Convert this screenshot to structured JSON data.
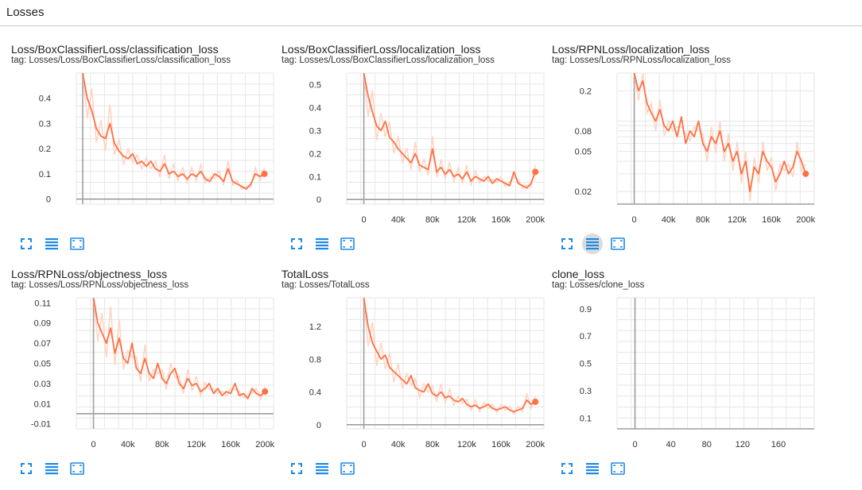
{
  "header": {
    "title": "Losses"
  },
  "colors": {
    "smoothed": "#ff7043",
    "raw": "#ffd3c2",
    "grid": "#e6e6e6",
    "axis": "#9e9e9e",
    "icon": "#1e88e5"
  },
  "icons": [
    "fit-domain-icon",
    "toggle-log-scale-icon",
    "expand-chart-icon"
  ],
  "chart_data": [
    {
      "type": "line",
      "title": "Loss/BoxClassifierLoss/classification_loss",
      "tag": "tag: Losses/Loss/BoxClassifierLoss/classification_loss",
      "x_ticks": [],
      "y_ticks": [
        "0.4",
        "0.3",
        "0.2",
        "0.1",
        "0"
      ],
      "xlim": [
        -7000,
        210000
      ],
      "ylim": [
        -0.02,
        0.5
      ],
      "log": false,
      "show_x_labels": false,
      "series": [
        {
          "x": [
            0,
            5000,
            10000,
            15000,
            20000,
            25000,
            30000,
            35000,
            40000,
            45000,
            50000,
            55000,
            60000,
            65000,
            70000,
            75000,
            80000,
            85000,
            90000,
            95000,
            100000,
            105000,
            110000,
            115000,
            120000,
            125000,
            130000,
            135000,
            140000,
            145000,
            150000,
            155000,
            160000,
            165000,
            170000,
            175000,
            180000,
            185000,
            190000,
            195000,
            200000
          ],
          "values": [
            0.5,
            0.4,
            0.35,
            0.28,
            0.25,
            0.24,
            0.3,
            0.22,
            0.19,
            0.17,
            0.16,
            0.18,
            0.14,
            0.15,
            0.13,
            0.15,
            0.12,
            0.11,
            0.14,
            0.1,
            0.11,
            0.09,
            0.1,
            0.08,
            0.1,
            0.09,
            0.11,
            0.08,
            0.07,
            0.1,
            0.09,
            0.07,
            0.12,
            0.07,
            0.06,
            0.05,
            0.04,
            0.06,
            0.1,
            0.09,
            0.1
          ]
        }
      ]
    },
    {
      "type": "line",
      "title": "Loss/BoxClassifierLoss/localization_loss",
      "tag": "tag: Losses/Loss/BoxClassifierLoss/localization_loss",
      "x_ticks": [
        "0",
        "40k",
        "80k",
        "120k",
        "160k",
        "200k"
      ],
      "y_ticks": [
        "0.5",
        "0.4",
        "0.3",
        "0.2",
        "0.1",
        "0"
      ],
      "xlim": [
        -20000,
        210000
      ],
      "ylim": [
        -0.02,
        0.55
      ],
      "log": false,
      "show_x_labels": true,
      "series": [
        {
          "x": [
            0,
            5000,
            10000,
            15000,
            20000,
            25000,
            30000,
            35000,
            40000,
            45000,
            50000,
            55000,
            60000,
            65000,
            70000,
            75000,
            80000,
            85000,
            90000,
            95000,
            100000,
            105000,
            110000,
            115000,
            120000,
            125000,
            130000,
            135000,
            140000,
            145000,
            150000,
            155000,
            160000,
            165000,
            170000,
            175000,
            180000,
            185000,
            190000,
            195000,
            200000
          ],
          "values": [
            0.55,
            0.45,
            0.38,
            0.32,
            0.3,
            0.34,
            0.27,
            0.25,
            0.22,
            0.2,
            0.18,
            0.16,
            0.2,
            0.15,
            0.14,
            0.13,
            0.22,
            0.12,
            0.14,
            0.11,
            0.13,
            0.1,
            0.11,
            0.09,
            0.12,
            0.08,
            0.1,
            0.09,
            0.08,
            0.1,
            0.07,
            0.09,
            0.08,
            0.07,
            0.06,
            0.12,
            0.07,
            0.06,
            0.05,
            0.07,
            0.12
          ]
        }
      ]
    },
    {
      "type": "line",
      "title": "Loss/RPNLoss/localization_loss",
      "tag": "tag: Losses/Loss/RPNLoss/localization_loss",
      "x_ticks": [
        "0",
        "40k",
        "80k",
        "120k",
        "160k",
        "200k"
      ],
      "y_ticks": [
        "0.2",
        "0.08",
        "0.05",
        "0.02"
      ],
      "xlim": [
        -20000,
        210000
      ],
      "ylim": [
        0.015,
        0.3
      ],
      "log": true,
      "show_x_labels": true,
      "series": [
        {
          "x": [
            0,
            5000,
            10000,
            15000,
            20000,
            25000,
            30000,
            35000,
            40000,
            45000,
            50000,
            55000,
            60000,
            65000,
            70000,
            75000,
            80000,
            85000,
            90000,
            95000,
            100000,
            105000,
            110000,
            115000,
            120000,
            125000,
            130000,
            135000,
            140000,
            145000,
            150000,
            155000,
            160000,
            165000,
            170000,
            175000,
            180000,
            185000,
            190000,
            195000,
            200000
          ],
          "values": [
            0.3,
            0.2,
            0.25,
            0.15,
            0.12,
            0.1,
            0.13,
            0.09,
            0.08,
            0.1,
            0.07,
            0.11,
            0.06,
            0.08,
            0.07,
            0.1,
            0.06,
            0.05,
            0.07,
            0.06,
            0.08,
            0.05,
            0.06,
            0.04,
            0.05,
            0.03,
            0.04,
            0.02,
            0.035,
            0.03,
            0.05,
            0.04,
            0.035,
            0.025,
            0.03,
            0.04,
            0.03,
            0.035,
            0.05,
            0.04,
            0.03
          ]
        }
      ]
    },
    {
      "type": "line",
      "title": "Loss/RPNLoss/objectness_loss",
      "tag": "tag: Losses/Loss/RPNLoss/objectness_loss",
      "x_ticks": [
        "0",
        "40k",
        "80k",
        "120k",
        "160k",
        "200k"
      ],
      "y_ticks": [
        "0.11",
        "0.09",
        "0.07",
        "0.05",
        "0.03",
        "0.01",
        "-0.01"
      ],
      "xlim": [
        -20000,
        210000
      ],
      "ylim": [
        -0.015,
        0.115
      ],
      "log": false,
      "show_x_labels": true,
      "series": [
        {
          "x": [
            0,
            5000,
            10000,
            15000,
            20000,
            25000,
            30000,
            35000,
            40000,
            45000,
            50000,
            55000,
            60000,
            65000,
            70000,
            75000,
            80000,
            85000,
            90000,
            95000,
            100000,
            105000,
            110000,
            115000,
            120000,
            125000,
            130000,
            135000,
            140000,
            145000,
            150000,
            155000,
            160000,
            165000,
            170000,
            175000,
            180000,
            185000,
            190000,
            195000,
            200000
          ],
          "values": [
            0.115,
            0.09,
            0.08,
            0.07,
            0.085,
            0.06,
            0.075,
            0.055,
            0.05,
            0.07,
            0.045,
            0.04,
            0.055,
            0.04,
            0.035,
            0.05,
            0.035,
            0.03,
            0.04,
            0.045,
            0.03,
            0.025,
            0.035,
            0.028,
            0.03,
            0.022,
            0.025,
            0.03,
            0.02,
            0.025,
            0.018,
            0.022,
            0.02,
            0.03,
            0.018,
            0.02,
            0.015,
            0.025,
            0.02,
            0.018,
            0.022
          ]
        }
      ]
    },
    {
      "type": "line",
      "title": "TotalLoss",
      "tag": "tag: Losses/TotalLoss",
      "x_ticks": [
        "0",
        "40k",
        "80k",
        "120k",
        "160k",
        "200k"
      ],
      "y_ticks": [
        "1.2",
        "0.8",
        "0.4",
        "0"
      ],
      "xlim": [
        -20000,
        210000
      ],
      "ylim": [
        -0.05,
        1.55
      ],
      "log": false,
      "show_x_labels": true,
      "series": [
        {
          "x": [
            0,
            5000,
            10000,
            15000,
            20000,
            25000,
            30000,
            35000,
            40000,
            45000,
            50000,
            55000,
            60000,
            65000,
            70000,
            75000,
            80000,
            85000,
            90000,
            95000,
            100000,
            105000,
            110000,
            115000,
            120000,
            125000,
            130000,
            135000,
            140000,
            145000,
            150000,
            155000,
            160000,
            165000,
            170000,
            175000,
            180000,
            185000,
            190000,
            195000,
            200000
          ],
          "values": [
            1.55,
            1.2,
            1.0,
            0.9,
            0.8,
            0.85,
            0.7,
            0.65,
            0.6,
            0.55,
            0.5,
            0.6,
            0.45,
            0.42,
            0.4,
            0.5,
            0.38,
            0.35,
            0.4,
            0.33,
            0.35,
            0.3,
            0.28,
            0.32,
            0.25,
            0.22,
            0.24,
            0.2,
            0.22,
            0.25,
            0.2,
            0.18,
            0.2,
            0.22,
            0.18,
            0.16,
            0.18,
            0.2,
            0.3,
            0.25,
            0.28
          ]
        }
      ]
    },
    {
      "type": "line",
      "title": "clone_loss",
      "tag": "tag: Losses/clone_loss",
      "x_ticks": [
        "0",
        "40",
        "80",
        "120",
        "160"
      ],
      "y_ticks": [
        "0.9",
        "0.7",
        "0.5",
        "0.3",
        "0.1"
      ],
      "xlim": [
        -20,
        200
      ],
      "ylim": [
        0.02,
        0.98
      ],
      "log": false,
      "show_x_labels": true,
      "series": [
        {
          "x": [],
          "values": []
        }
      ]
    }
  ]
}
